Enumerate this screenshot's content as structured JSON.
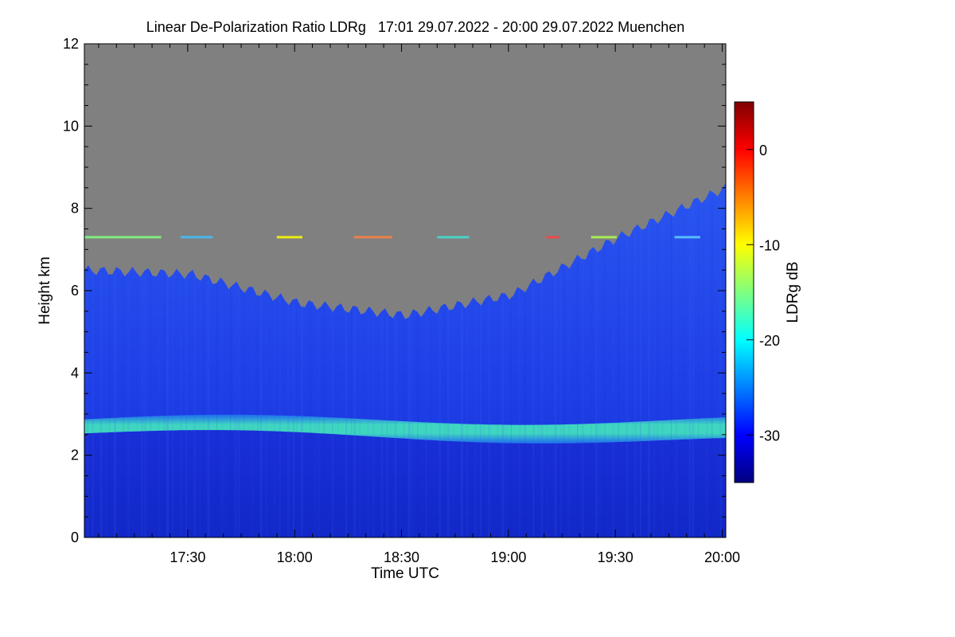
{
  "chart_data": {
    "type": "heatmap",
    "title": "Linear De-Polarization Ratio LDRg   17:01 29.07.2022 - 20:00 29.07.2022 Muenchen",
    "xlabel": "Time UTC",
    "ylabel": "Height km",
    "xlim": [
      "17:01",
      "20:01"
    ],
    "ylim": [
      0,
      12
    ],
    "x_ticks": [
      "17:30",
      "18:00",
      "18:30",
      "19:00",
      "19:30",
      "20:00"
    ],
    "y_ticks": [
      0,
      2,
      4,
      6,
      8,
      10,
      12
    ],
    "colorbar": {
      "label": "LDRg dB",
      "range": [
        -35,
        5
      ],
      "ticks": [
        0,
        -10,
        -20,
        -30
      ],
      "colormap": "jet"
    },
    "colors": {
      "no_signal": "#808080",
      "background_low_ldr": "#1a2fd8",
      "melting_layer": "#3fd6c0"
    },
    "features": [
      {
        "name": "melting layer",
        "height_km": 2.7,
        "ldr_db": -20,
        "time_range": [
          "17:01",
          "20:01"
        ]
      },
      {
        "name": "cloud top",
        "time_range": [
          "17:01",
          "20:01"
        ],
        "top_km": [
          6.5,
          6.4,
          5.7,
          5.4,
          5.9,
          7.3,
          8.5
        ]
      },
      {
        "name": "interference line",
        "height_km": 7.3,
        "ldr_db": -10
      }
    ]
  }
}
